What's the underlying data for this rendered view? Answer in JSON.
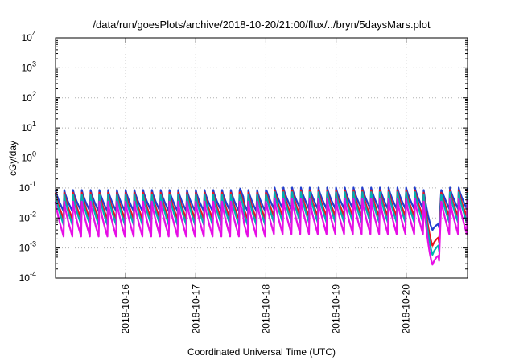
{
  "chart_data": {
    "type": "line",
    "title": "/data/run/goesPlots/archive/2018-10-20/21:00/flux/../bryn/5daysMars.plot",
    "xlabel": "Coordinated Universal Time (UTC)",
    "ylabel": "cGy/day",
    "yscale": "log",
    "ylim": [
      0.0001,
      10000
    ],
    "y_ticks": [
      {
        "base": "10",
        "exp": "-4",
        "value": 0.0001
      },
      {
        "base": "10",
        "exp": "-3",
        "value": 0.001
      },
      {
        "base": "10",
        "exp": "-2",
        "value": 0.01
      },
      {
        "base": "10",
        "exp": "-1",
        "value": 0.1
      },
      {
        "base": "10",
        "exp": "0",
        "value": 1
      },
      {
        "base": "10",
        "exp": "1",
        "value": 10
      },
      {
        "base": "10",
        "exp": "2",
        "value": 100
      },
      {
        "base": "10",
        "exp": "3",
        "value": 1000
      },
      {
        "base": "10",
        "exp": "4",
        "value": 10000
      }
    ],
    "xlim": [
      "2018-10-15 00:00",
      "2018-10-20 21:00"
    ],
    "x_ticks": [
      "2018-10-16",
      "2018-10-17",
      "2018-10-18",
      "2018-10-19",
      "2018-10-20"
    ],
    "grid": true,
    "legend": "none",
    "sawtooth_period_hours": 3,
    "series": [
      {
        "color": "#1f3fd0",
        "peak": 0.085,
        "trough": 0.015,
        "valley_end": 0.004
      },
      {
        "color": "#e8141e",
        "peak": 0.07,
        "trough": 0.008,
        "valley_end": 0.0012
      },
      {
        "color": "#00b0b0",
        "peak": 0.06,
        "trough": 0.005,
        "valley_end": 0.0006
      },
      {
        "color": "#e60ee6",
        "peak": 0.035,
        "trough": 0.002,
        "valley_end": 0.00028
      }
    ],
    "anomaly": {
      "start": "2018-10-20 06:00",
      "min": "2018-10-20 09:00",
      "end": "2018-10-20 12:00"
    }
  }
}
